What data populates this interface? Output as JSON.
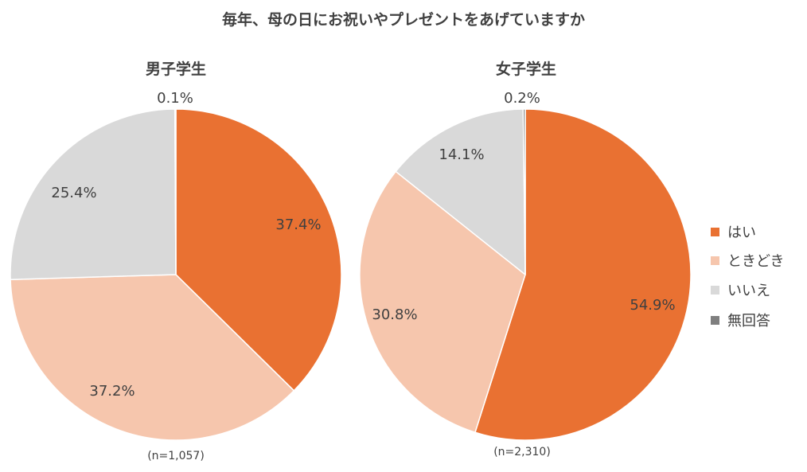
{
  "chart_data": {
    "type": "pie",
    "title": "毎年、母の日にお祝いやプレゼントをあげていますか",
    "categories": [
      "はい",
      "ときどき",
      "いいえ",
      "無回答"
    ],
    "colors": [
      "#E97132",
      "#F6C6AD",
      "#D9D9D9",
      "#7F7F7F"
    ],
    "pies": [
      {
        "title": "男子学生",
        "n_label": "(n=1,057)",
        "values": [
          37.4,
          37.2,
          25.4,
          0.1
        ],
        "labels": [
          "37.4%",
          "37.2%",
          "25.4%",
          "0.1%"
        ]
      },
      {
        "title": "女子学生",
        "n_label": "(n=2,310)",
        "values": [
          54.9,
          30.8,
          14.1,
          0.2
        ],
        "labels": [
          "54.9%",
          "30.8%",
          "14.1%",
          "0.2%"
        ]
      }
    ],
    "legend_position": "right"
  }
}
